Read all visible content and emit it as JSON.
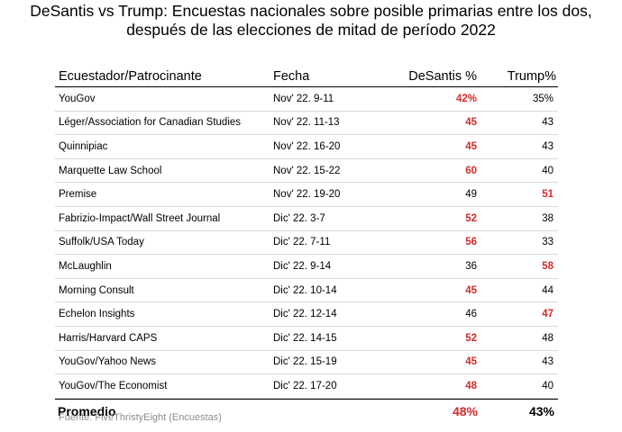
{
  "title": {
    "line1": "DeSantis vs Trump: Encuestas nacionales sobre posible primarias entre los dos,",
    "line2": "después de las elecciones de mitad de período 2022"
  },
  "table": {
    "headers": [
      "Ecuestador/Patrocinante",
      "Fecha",
      "DeSantis %",
      "Trump%"
    ],
    "rows": [
      {
        "pollster": "YouGov",
        "date": "Nov' 22.  9-11",
        "desantis": "42%",
        "trump": "35%",
        "leader": "desantis"
      },
      {
        "pollster": "Léger/Association for Canadian Studies",
        "date": "Nov' 22.  11-13",
        "desantis": "45",
        "trump": "43",
        "leader": "desantis"
      },
      {
        "pollster": "Quinnipiac",
        "date": "Nov' 22.  16-20",
        "desantis": "45",
        "trump": "43",
        "leader": "desantis"
      },
      {
        "pollster": "Marquette Law School",
        "date": "Nov' 22.  15-22",
        "desantis": "60",
        "trump": "40",
        "leader": "desantis"
      },
      {
        "pollster": "Premise",
        "date": "Nov' 22.  19-20",
        "desantis": "49",
        "trump": "51",
        "leader": "trump"
      },
      {
        "pollster": "Fabrizio-Impact/Wall Street Journal",
        "date": "Dic' 22.   3-7",
        "desantis": "52",
        "trump": "38",
        "leader": "desantis"
      },
      {
        "pollster": "Suffolk/USA Today",
        "date": "Dic' 22.   7-11",
        "desantis": "56",
        "trump": "33",
        "leader": "desantis"
      },
      {
        "pollster": "McLaughlin",
        "date": "Dic' 22.   9-14",
        "desantis": "36",
        "trump": "58",
        "leader": "trump"
      },
      {
        "pollster": "Morning Consult",
        "date": "Dic' 22.  10-14",
        "desantis": "45",
        "trump": "44",
        "leader": "desantis"
      },
      {
        "pollster": "Echelon Insights",
        "date": "Dic' 22.  12-14",
        "desantis": "46",
        "trump": "47",
        "leader": "trump"
      },
      {
        "pollster": "Harris/Harvard CAPS",
        "date": "Dic' 22.  14-15",
        "desantis": "52",
        "trump": "48",
        "leader": "desantis"
      },
      {
        "pollster": "YouGov/Yahoo News",
        "date": "Dic' 22.  15-19",
        "desantis": "45",
        "trump": "43",
        "leader": "desantis"
      },
      {
        "pollster": "YouGov/The Economist",
        "date": "Dic' 22.  17-20",
        "desantis": "48",
        "trump": "40",
        "leader": "desantis"
      }
    ],
    "total": {
      "label": "Promedio",
      "desantis": "48%",
      "trump": "43%",
      "leader": "desantis"
    }
  },
  "source": "Fuente: FiveThristyEight (Encuestas)",
  "colors": {
    "highlight": "#d42a2a",
    "source_text": "#8c8c8c",
    "divider": "#d9d9d9"
  }
}
